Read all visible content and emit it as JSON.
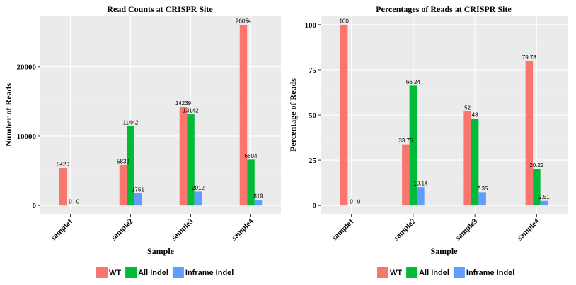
{
  "chart_data": [
    {
      "type": "bar",
      "title": "Read Counts at CRISPR Site",
      "xlabel": "Sample",
      "ylabel": "Number of Reads",
      "categories": [
        "sample1",
        "sample2",
        "sample3",
        "sample4"
      ],
      "series": [
        {
          "name": "WT",
          "values": [
            5420,
            5832,
            14239,
            26054
          ],
          "labels": [
            "5420",
            "5832",
            "14239",
            "26054"
          ]
        },
        {
          "name": "All Indel",
          "values": [
            0,
            11442,
            13142,
            6604
          ],
          "labels": [
            "0",
            "11442",
            "13142",
            "6604"
          ]
        },
        {
          "name": "Inframe Indel",
          "values": [
            0,
            1751,
            2012,
            819
          ],
          "labels": [
            "0",
            "1751",
            "2012",
            "819"
          ]
        }
      ],
      "yticks": [
        0,
        10000,
        20000
      ],
      "ytick_labels": [
        "0",
        "10000",
        "20000"
      ],
      "ylim": [
        -1300,
        27400
      ],
      "grid": true
    },
    {
      "type": "bar",
      "title": "Percentages of Reads at CRISPR Site",
      "xlabel": "Sample",
      "ylabel": "Percentage of Reads",
      "categories": [
        "sample1",
        "sample2",
        "sample3",
        "sample4"
      ],
      "series": [
        {
          "name": "WT",
          "values": [
            100,
            33.76,
            52,
            79.78
          ],
          "labels": [
            "100",
            "33.76",
            "52",
            "79.78"
          ]
        },
        {
          "name": "All Indel",
          "values": [
            0,
            66.24,
            48,
            20.22
          ],
          "labels": [
            "0",
            "66.24",
            "48",
            "20.22"
          ]
        },
        {
          "name": "Inframe Indel",
          "values": [
            0,
            10.14,
            7.35,
            2.51
          ],
          "labels": [
            "0",
            "10.14",
            "7.35",
            "2.51"
          ]
        }
      ],
      "yticks": [
        0,
        25,
        50,
        75,
        100
      ],
      "ytick_labels": [
        "0",
        "25",
        "50",
        "75",
        "100"
      ],
      "ylim": [
        -5,
        105
      ],
      "grid": true
    }
  ],
  "legend": {
    "placement": "bottom",
    "items": [
      {
        "name": "WT",
        "color": "#F8766D"
      },
      {
        "name": "All Indel",
        "color": "#00BA38"
      },
      {
        "name": "Inframe Indel",
        "color": "#619CFF"
      }
    ]
  },
  "colors": {
    "panel_bg": "#EBEBEB",
    "grid_major": "#FFFFFF",
    "grid_minor": "#F5F5F5",
    "tick": "#333333"
  }
}
